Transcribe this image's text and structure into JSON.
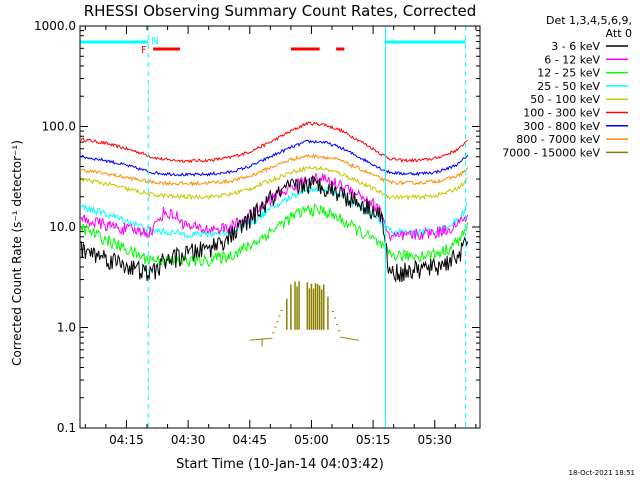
{
  "chart_data": {
    "type": "line",
    "title": "RHESSI Observing Summary Count Rates, Corrected",
    "xlabel": "Start Time (10-Jan-14 04:03:42)",
    "ylabel": "Corrected Count Rate (s⁻¹ detector⁻¹)",
    "y_scale": "log",
    "ylim": [
      0.1,
      1000
    ],
    "xlim": [
      "04:03:42",
      "05:41:00"
    ],
    "x_units": "minutes since 04:00",
    "xlim_minutes": [
      3.7,
      101
    ],
    "x_ticks": [
      {
        "label": "04:15",
        "minute": 15
      },
      {
        "label": "04:30",
        "minute": 30
      },
      {
        "label": "04:45",
        "minute": 45
      },
      {
        "label": "05:00",
        "minute": 60
      },
      {
        "label": "05:15",
        "minute": 75
      },
      {
        "label": "05:30",
        "minute": 90
      }
    ],
    "y_ticks": [
      {
        "label": "1000.0",
        "value": 1000
      },
      {
        "label": "100.0",
        "value": 100
      },
      {
        "label": "10.0",
        "value": 10
      },
      {
        "label": "1.0",
        "value": 1
      },
      {
        "label": "0.1",
        "value": 0.1
      }
    ],
    "legend": {
      "header": [
        "Det 1,3,4,5,6,9,",
        "Att 0"
      ],
      "placement": "right"
    },
    "x": [
      4,
      10,
      15,
      19,
      21,
      24,
      27,
      30,
      35,
      40,
      45,
      50,
      55,
      59,
      63,
      67,
      71,
      75,
      77,
      79,
      82,
      86,
      90,
      93,
      96,
      98
    ],
    "series": [
      {
        "name": "3 - 6 keV",
        "color": "#000000",
        "values": [
          6,
          5,
          4.2,
          3.6,
          3.4,
          4.6,
          5,
          5.5,
          6.2,
          8,
          12,
          19,
          25,
          27,
          26,
          22,
          18,
          15,
          13,
          3.5,
          3.6,
          3.8,
          4,
          4.5,
          5.5,
          7
        ]
      },
      {
        "name": "6 - 12 keV",
        "color": "#ff00ff",
        "values": [
          12,
          10.5,
          9.5,
          9,
          9,
          14,
          13,
          10,
          9.5,
          9.8,
          13,
          19,
          25,
          30,
          30,
          26,
          22,
          17,
          14,
          7.8,
          8,
          8.5,
          8.8,
          9.5,
          11,
          13
        ]
      },
      {
        "name": "12 - 25 keV",
        "color": "#00ff00",
        "values": [
          10,
          7.5,
          6,
          5,
          4.8,
          4.7,
          4.6,
          4.6,
          4.7,
          5.2,
          6.5,
          9,
          12.5,
          15,
          14.5,
          12,
          9.5,
          7.5,
          6.5,
          5.3,
          5.2,
          5.2,
          5.4,
          6,
          7.5,
          10
        ]
      },
      {
        "name": "25 - 50 keV",
        "color": "#00ffff",
        "values": [
          16,
          13.5,
          11.5,
          10,
          9.3,
          9,
          8.7,
          8.5,
          8.5,
          9,
          11,
          15,
          20,
          24,
          24,
          21,
          16.5,
          13,
          11,
          9.2,
          8.8,
          8.8,
          9.2,
          10,
          12,
          17
        ]
      },
      {
        "name": "50 - 100 keV",
        "color": "#c8c800",
        "values": [
          30,
          27,
          24,
          22,
          21,
          20.5,
          20,
          20,
          20,
          21,
          24,
          29,
          35,
          39,
          38,
          34,
          29,
          24,
          22,
          20,
          19.8,
          19.8,
          20.5,
          22,
          25,
          30
        ]
      },
      {
        "name": "100 - 300 keV",
        "color": "#ff0000",
        "values": [
          75,
          68,
          60,
          54,
          50,
          47,
          46,
          45.5,
          46,
          49,
          56,
          70,
          90,
          108,
          105,
          92,
          75,
          60,
          53,
          48,
          46,
          46,
          48,
          53,
          60,
          75
        ]
      },
      {
        "name": "300 - 800 keV",
        "color": "#0000ff",
        "values": [
          50,
          46,
          41,
          37,
          35,
          34,
          33.5,
          33,
          33.5,
          35,
          40,
          50,
          62,
          71,
          70,
          62,
          51,
          42,
          38,
          35,
          34,
          34,
          35,
          38,
          43,
          52
        ]
      },
      {
        "name": "800 - 7000 keV",
        "color": "#ff8c00",
        "values": [
          37,
          34,
          31,
          29,
          28,
          27.5,
          27,
          27,
          27.5,
          28.5,
          32,
          39,
          47,
          51,
          50,
          46,
          39,
          33,
          30,
          28,
          27.5,
          27.5,
          28.5,
          30,
          33,
          38
        ]
      },
      {
        "name": "7000 - 15000 keV",
        "color": "#8b7d00",
        "values": [
          null,
          null,
          null,
          null,
          null,
          null,
          null,
          null,
          null,
          null,
          0.75,
          0.78,
          2.8,
          2.9,
          2.6,
          0.8,
          0.75,
          null,
          null,
          null,
          null,
          null,
          null,
          null,
          null,
          null
        ]
      }
    ],
    "attenuator_lines": [
      {
        "color": "#00ffff",
        "minute": 20.3
      },
      {
        "color": "#00ffff",
        "minute": 97.5
      }
    ],
    "night_bars": [
      {
        "label": "N",
        "color": "#00ffff",
        "from_minute": 3.7,
        "to_minute": 20.3
      },
      {
        "label": "",
        "color": "#00ffff",
        "from_minute": 78,
        "to_minute": 97.5
      }
    ],
    "flare_bars": [
      {
        "label": "F",
        "color": "#ff0000",
        "from_minute": 21.5,
        "to_minute": 28
      },
      {
        "label": "",
        "color": "#ff0000",
        "from_minute": 55,
        "to_minute": 62
      },
      {
        "label": "",
        "color": "#ff0000",
        "from_minute": 66,
        "to_minute": 68
      }
    ],
    "timestamp": "18-Oct-2021 18:51"
  }
}
